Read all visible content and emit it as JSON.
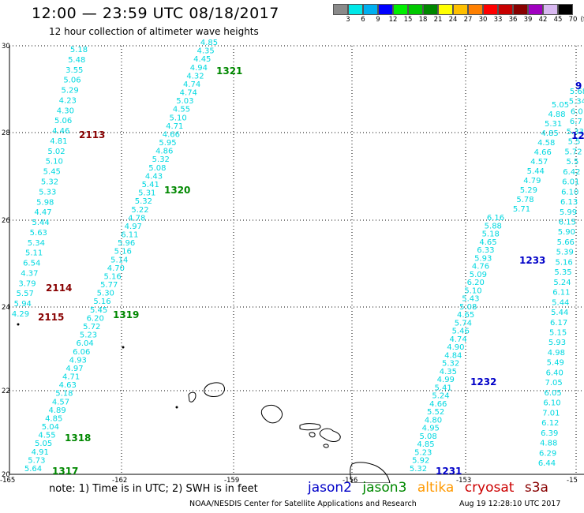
{
  "header": {
    "title": "12:00 — 23:59 UTC 08/18/2017",
    "subtitle": "12 hour collection of altimeter wave heights"
  },
  "legend": {
    "unit": "(ft)",
    "colors": [
      "#8a8a8a",
      "#00e8e8",
      "#00b0f0",
      "#0000ff",
      "#00f000",
      "#00c800",
      "#008800",
      "#ffff00",
      "#ffc000",
      "#ff8000",
      "#ff0000",
      "#c80000",
      "#880000",
      "#a000c0",
      "#d8b8f0",
      "#000000"
    ],
    "labels": [
      "3",
      "6",
      "9",
      "12",
      "15",
      "18",
      "21",
      "24",
      "27",
      "30",
      "33",
      "36",
      "39",
      "42",
      "45",
      "70"
    ]
  },
  "axes": {
    "x_ticks": [
      "-165",
      "-162",
      "-159",
      "-156",
      "-153",
      "-15"
    ],
    "y_ticks": [
      "30",
      "28",
      "26",
      "24",
      "22",
      "20"
    ]
  },
  "colors": {
    "swh_values": "#00d8e0",
    "jason2": "#0000c8",
    "jason3": "#008800",
    "altika": "#ff9900",
    "cryosat": "#cc0000",
    "s3a": "#880000"
  },
  "tracks": {
    "track_a": [
      "5.18",
      "5.48",
      "3.55",
      "5.06",
      "5.29",
      "4.23",
      "4.30",
      "5.06",
      "4.46",
      "4.81",
      "5.02",
      "5.10",
      "5.45",
      "5.32",
      "5.33",
      "5.98",
      "4.47",
      "5.44",
      "5.63",
      "5.34",
      "5.11",
      "6.54",
      "4.37",
      "3.79",
      "5.57",
      "5.94",
      "4.29"
    ],
    "track_b": [
      "4.85",
      "4.35",
      "4.45",
      "4.94",
      "4.32",
      "4.74",
      "4.74",
      "5.03",
      "4.55",
      "5.10",
      "4.71",
      "4.66",
      "5.95",
      "4.86",
      "5.32",
      "5.08",
      "4.43",
      "5.41",
      "5.31",
      "5.32",
      "5.22",
      "4.78",
      "4.97",
      "6.11",
      "5.96",
      "5.16",
      "5.14",
      "4.70",
      "5.16",
      "5.77",
      "5.30",
      "5.16",
      "5.45",
      "6.20",
      "5.72",
      "5.23",
      "6.04",
      "6.06",
      "4.93",
      "4.97",
      "4.71",
      "4.63",
      "5.18",
      "4.57",
      "4.89",
      "4.85",
      "5.04",
      "4.55",
      "5.05",
      "4.91",
      "5.73",
      "5.64"
    ],
    "track_c": [
      "6.16",
      "5.88",
      "5.18",
      "4.65",
      "6.33",
      "5.93",
      "4.76",
      "5.09",
      "6.20",
      "5.10",
      "5.43",
      "5.08",
      "4.65",
      "5.74",
      "5.46",
      "4.74",
      "4.90",
      "4.84",
      "5.32",
      "4.35",
      "4.99",
      "5.41",
      "5.24",
      "4.66",
      "5.52",
      "4.80",
      "4.95",
      "5.08",
      "4.85",
      "5.23",
      "5.92",
      "5.32"
    ],
    "track_d": [
      "5.05",
      "4.88",
      "5.31",
      "4.85",
      "4.58",
      "4.66",
      "4.57",
      "5.44",
      "4.79",
      "5.29",
      "5.78",
      "5.71"
    ],
    "track_e": [
      "5.68",
      "5.34",
      "6.0",
      "6.7",
      "5.33",
      "5.5",
      "5.72",
      "5.5",
      "6.42",
      "6.01",
      "6.10",
      "6.13",
      "5.99",
      "6.15",
      "5.90",
      "5.66",
      "5.39",
      "5.16",
      "5.35",
      "5.24",
      "6.11",
      "5.44",
      "5.44",
      "6.17",
      "5.15",
      "5.93",
      "4.98",
      "5.49",
      "6.40",
      "7.05",
      "6.05",
      "6.10",
      "7.01",
      "6.12",
      "6.39",
      "4.88",
      "6.29",
      "6.44"
    ]
  },
  "pass_labels": [
    {
      "text": "2113",
      "sat": "s3a"
    },
    {
      "text": "1321",
      "sat": "jason3"
    },
    {
      "text": "1320",
      "sat": "jason3"
    },
    {
      "text": "2114",
      "sat": "s3a"
    },
    {
      "text": "2115",
      "sat": "s3a"
    },
    {
      "text": "1319",
      "sat": "jason3"
    },
    {
      "text": "1318",
      "sat": "jason3"
    },
    {
      "text": "1317",
      "sat": "jason3"
    },
    {
      "text": "1233",
      "sat": "jason2"
    },
    {
      "text": "1232",
      "sat": "jason2"
    },
    {
      "text": "1231",
      "sat": "jason2"
    },
    {
      "text": "12",
      "sat": "jason2"
    },
    {
      "text": "9",
      "sat": "jason2"
    }
  ],
  "footer": {
    "note": "note:  1) Time is in UTC;  2) SWH is in feet",
    "satellites": [
      "jason2",
      "jason3",
      "altika",
      "cryosat",
      "s3a"
    ],
    "credit": "NOAA/NESDIS Center for Satellite Applications and Research",
    "timestamp": "Aug 19 12:28:10 UTC 2017"
  }
}
